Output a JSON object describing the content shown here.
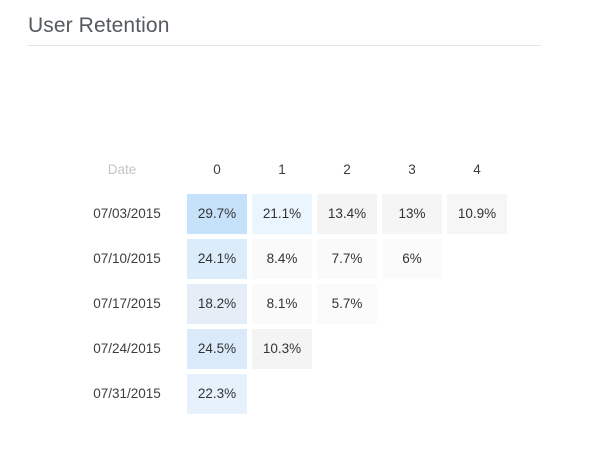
{
  "title": "User Retention",
  "table": {
    "date_header": "Date",
    "columns": [
      "0",
      "1",
      "2",
      "3",
      "4"
    ],
    "rows": [
      {
        "date": "07/03/2015",
        "values": [
          "29.7%",
          "21.1%",
          "13.4%",
          "13%",
          "10.9%"
        ]
      },
      {
        "date": "07/10/2015",
        "values": [
          "24.1%",
          "8.4%",
          "7.7%",
          "6%"
        ]
      },
      {
        "date": "07/17/2015",
        "values": [
          "18.2%",
          "8.1%",
          "5.7%"
        ]
      },
      {
        "date": "07/24/2015",
        "values": [
          "24.5%",
          "10.3%"
        ]
      },
      {
        "date": "07/31/2015",
        "values": [
          "22.3%"
        ]
      }
    ]
  },
  "colors": {
    "row0": [
      "#c6e2fa",
      "#eaf5fd",
      "#f4f4f4",
      "#f5f5f5",
      "#f6f6f6"
    ],
    "row1": [
      "#dbedfa",
      "#fafafa",
      "#fafafa",
      "#fbfbfb"
    ],
    "row2": [
      "#e5eef7",
      "#fafafa",
      "#fbfbfb"
    ],
    "row3": [
      "#daeafa",
      "#f4f4f4"
    ],
    "row4": [
      "#e6f1fb"
    ]
  }
}
